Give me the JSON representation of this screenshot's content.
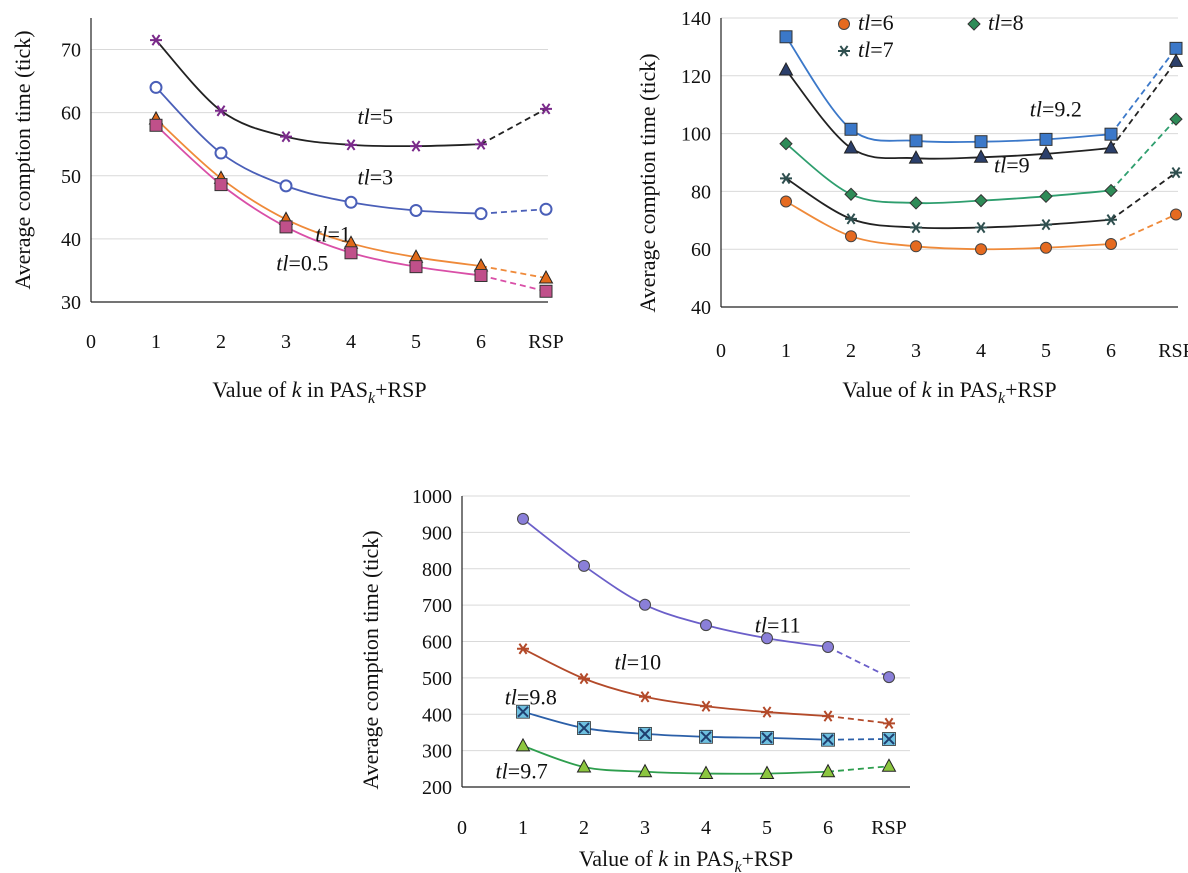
{
  "chart_data": [
    {
      "type": "line",
      "xlabel": "Value of k in PASk+RSP",
      "xlabel_parts": {
        "pre": "Value of ",
        "k": "k",
        "mid": " in PAS",
        "sub": "k",
        "post": "+RSP"
      },
      "ylabel": "Average comption time (tick)",
      "categories": [
        "1",
        "2",
        "3",
        "4",
        "5",
        "6",
        "RSP"
      ],
      "x_ticks": [
        "0",
        "1",
        "2",
        "3",
        "4",
        "5",
        "6",
        "RSP"
      ],
      "ylim": [
        30,
        75
      ],
      "y_ticks": [
        "30",
        "40",
        "50",
        "60",
        "70"
      ],
      "grid": true,
      "series": [
        {
          "name": "tl=5",
          "values": [
            71.5,
            60.3,
            56.2,
            54.9,
            54.7,
            55.0,
            60.6
          ],
          "color": "#222222",
          "marker": "star",
          "marker_color": "#7a2a8a"
        },
        {
          "name": "tl=3",
          "values": [
            64.0,
            53.6,
            48.4,
            45.8,
            44.5,
            44.0,
            44.7
          ],
          "color": "#4a5fb8",
          "marker": "circle-open",
          "marker_color": "#4a5fb8"
        },
        {
          "name": "tl=1",
          "values": [
            59.0,
            49.6,
            43.1,
            39.3,
            37.1,
            35.7,
            33.8
          ],
          "color": "#ef8a3a",
          "marker": "triangle",
          "marker_color": "#e06a1a"
        },
        {
          "name": "tl=0.5",
          "values": [
            58.0,
            48.6,
            41.9,
            37.8,
            35.6,
            34.2,
            31.7
          ],
          "color": "#d94fa7",
          "marker": "square",
          "marker_color": "#c0508a"
        }
      ],
      "annotations": [
        {
          "text": "tl=5",
          "x": 4.1,
          "y": 58.2
        },
        {
          "text": "tl=3",
          "x": 4.1,
          "y": 48.6
        },
        {
          "text": "tl=1",
          "x": 3.45,
          "y": 39.6
        },
        {
          "text": "tl=0.5",
          "x": 2.85,
          "y": 35.0
        }
      ]
    },
    {
      "type": "line",
      "xlabel": "Value of k in PASk+RSP",
      "xlabel_parts": {
        "pre": "Value of ",
        "k": "k",
        "mid": " in PAS",
        "sub": "k",
        "post": "+RSP"
      },
      "ylabel": "Average comption time (tick)",
      "categories": [
        "1",
        "2",
        "3",
        "4",
        "5",
        "6",
        "RSP"
      ],
      "x_ticks": [
        "0",
        "1",
        "2",
        "3",
        "4",
        "5",
        "6",
        "RSP"
      ],
      "ylim": [
        40,
        140
      ],
      "y_ticks": [
        "40",
        "60",
        "80",
        "100",
        "120",
        "140"
      ],
      "grid": true,
      "legend": {
        "placement": "top",
        "entries": [
          "tl=6",
          "tl=8",
          "tl=7"
        ]
      },
      "series": [
        {
          "name": "tl=9.2",
          "values": [
            133.5,
            101.5,
            97.5,
            97.2,
            98.0,
            99.8,
            129.5
          ],
          "color": "#3b78c9",
          "marker": "square",
          "marker_color": "#3b78c9"
        },
        {
          "name": "tl=9",
          "values": [
            122.0,
            95.0,
            91.5,
            91.8,
            93.0,
            95.0,
            125.0
          ],
          "color": "#222222",
          "marker": "triangle",
          "marker_color": "#2b3f6b"
        },
        {
          "name": "tl=8",
          "values": [
            96.5,
            79.0,
            76.0,
            76.8,
            78.3,
            80.3,
            105.0
          ],
          "color": "#2e9e6e",
          "marker": "diamond",
          "marker_color": "#2e8b57"
        },
        {
          "name": "tl=7",
          "values": [
            84.5,
            70.5,
            67.5,
            67.5,
            68.5,
            70.2,
            86.5
          ],
          "color": "#222222",
          "marker": "star",
          "marker_color": "#2f4f4f"
        },
        {
          "name": "tl=6",
          "values": [
            76.5,
            64.5,
            61.0,
            60.0,
            60.5,
            61.8,
            72.0
          ],
          "color": "#ef8a3a",
          "marker": "circle",
          "marker_color": "#e56a20"
        }
      ],
      "annotations": [
        {
          "text": "tl=9.2",
          "x": 4.75,
          "y": 106.0
        },
        {
          "text": "tl=9",
          "x": 4.2,
          "y": 86.5
        }
      ]
    },
    {
      "type": "line",
      "xlabel": "Value of k in PASk+RSP",
      "xlabel_parts": {
        "pre": "Value of ",
        "k": "k",
        "mid": " in PAS",
        "sub": "k",
        "post": "+RSP"
      },
      "ylabel": "Average comption time (tick)",
      "categories": [
        "1",
        "2",
        "3",
        "4",
        "5",
        "6",
        "RSP"
      ],
      "x_ticks": [
        "0",
        "1",
        "2",
        "3",
        "4",
        "5",
        "6",
        "RSP"
      ],
      "ylim": [
        200,
        1000
      ],
      "y_ticks": [
        "200",
        "300",
        "400",
        "500",
        "600",
        "700",
        "800",
        "900",
        "1000"
      ],
      "grid": true,
      "series": [
        {
          "name": "tl=11",
          "values": [
            937,
            808,
            701,
            645,
            609,
            585,
            502
          ],
          "color": "#6b5fc9",
          "marker": "circle",
          "marker_color": "#8a7fd9"
        },
        {
          "name": "tl=10",
          "values": [
            580,
            498,
            448,
            422,
            406,
            395,
            375
          ],
          "color": "#b34a2a",
          "marker": "star",
          "marker_color": "#b34a2a"
        },
        {
          "name": "tl=9.8",
          "values": [
            407,
            362,
            346,
            338,
            335,
            330,
            332
          ],
          "color": "#2b5fa8",
          "marker": "x-square",
          "marker_color": "#6ec0e0"
        },
        {
          "name": "tl=9.7",
          "values": [
            313,
            255,
            242,
            237,
            237,
            242,
            257
          ],
          "color": "#2e9e4e",
          "marker": "triangle",
          "marker_color": "#8cc63f"
        }
      ],
      "annotations": [
        {
          "text": "tl=11",
          "x": 4.8,
          "y": 625
        },
        {
          "text": "tl=10",
          "x": 2.5,
          "y": 523
        },
        {
          "text": "tl=9.8",
          "x": 0.7,
          "y": 427
        },
        {
          "text": "tl=9.7",
          "x": 0.55,
          "y": 223
        }
      ]
    }
  ]
}
